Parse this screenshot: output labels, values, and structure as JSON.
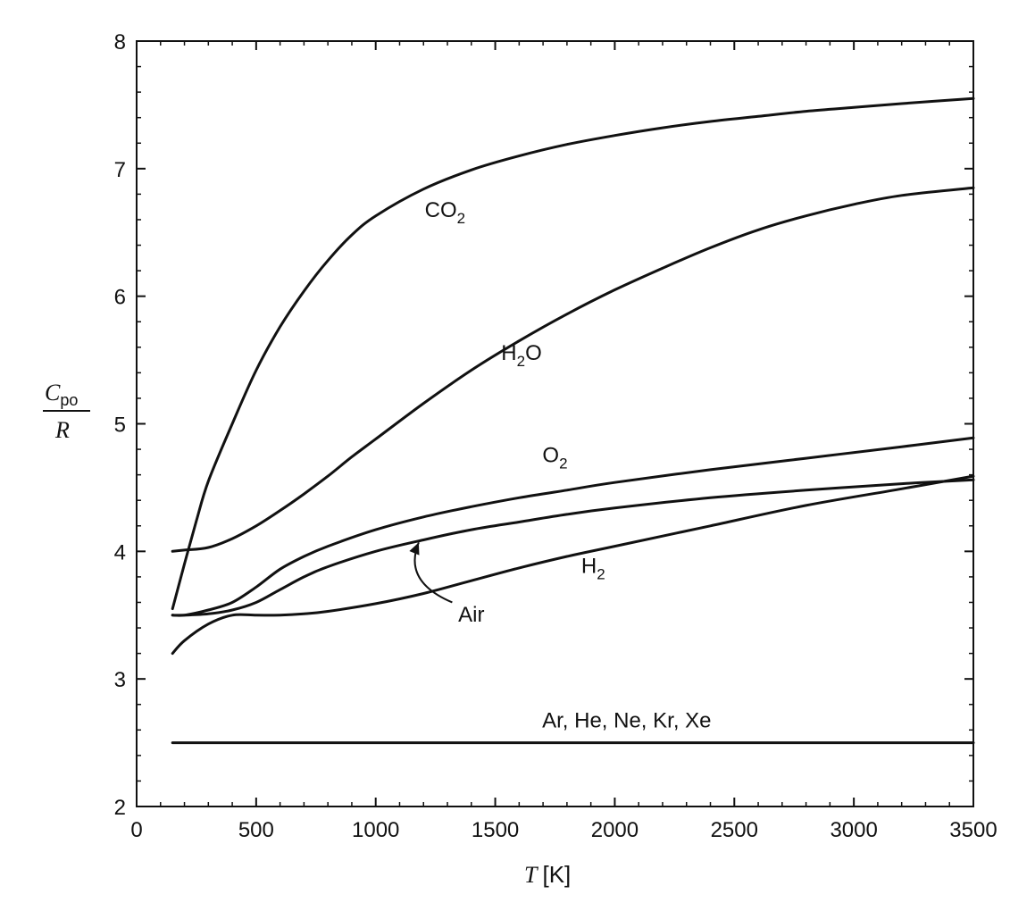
{
  "chart_data": {
    "type": "line",
    "xlabel": {
      "symbol": "T",
      "unit": "[K]"
    },
    "ylabel": {
      "numerator": "C",
      "numerator_sub": "po",
      "denominator": "R"
    },
    "xlim": [
      0,
      3500
    ],
    "ylim": [
      2,
      8
    ],
    "x_ticks": [
      0,
      500,
      1000,
      1500,
      2000,
      2500,
      3000,
      3500
    ],
    "y_ticks": [
      2,
      3,
      4,
      5,
      6,
      7,
      8
    ],
    "grid": false,
    "line_color": "#111111",
    "series": [
      {
        "name": "CO2",
        "label_main": "CO",
        "label_sub": "2",
        "label_anchor": [
          1290,
          6.62
        ],
        "x": [
          150,
          200,
          250,
          300,
          400,
          500,
          600,
          700,
          800,
          900,
          1000,
          1200,
          1400,
          1600,
          1800,
          2000,
          2200,
          2400,
          2600,
          2800,
          3000,
          3200,
          3500
        ],
        "y": [
          3.55,
          3.9,
          4.24,
          4.55,
          5.0,
          5.42,
          5.76,
          6.04,
          6.28,
          6.48,
          6.63,
          6.84,
          6.99,
          7.1,
          7.19,
          7.26,
          7.32,
          7.37,
          7.41,
          7.45,
          7.48,
          7.51,
          7.55
        ]
      },
      {
        "name": "H2O",
        "label_main": "H",
        "label_sub": "2",
        "label_tail": "O",
        "label_anchor": [
          1610,
          5.5
        ],
        "x": [
          150,
          200,
          300,
          400,
          500,
          600,
          700,
          800,
          900,
          1000,
          1200,
          1400,
          1600,
          1800,
          2000,
          2200,
          2400,
          2600,
          2800,
          3000,
          3200,
          3500
        ],
        "y": [
          4.0,
          4.01,
          4.03,
          4.1,
          4.2,
          4.32,
          4.45,
          4.59,
          4.74,
          4.88,
          5.16,
          5.42,
          5.65,
          5.86,
          6.05,
          6.22,
          6.38,
          6.52,
          6.63,
          6.72,
          6.79,
          6.85
        ]
      },
      {
        "name": "O2",
        "label_main": "O",
        "label_sub": "2",
        "label_anchor": [
          1750,
          4.7
        ],
        "x": [
          150,
          200,
          300,
          400,
          500,
          600,
          700,
          800,
          1000,
          1200,
          1400,
          1600,
          1800,
          2000,
          2400,
          2800,
          3200,
          3500
        ],
        "y": [
          3.5,
          3.5,
          3.54,
          3.6,
          3.72,
          3.86,
          3.96,
          4.04,
          4.17,
          4.27,
          4.35,
          4.42,
          4.48,
          4.54,
          4.64,
          4.73,
          4.82,
          4.89
        ]
      },
      {
        "name": "Air",
        "label_main": "Air",
        "label_anchor": [
          1400,
          3.45
        ],
        "arrow_from": [
          1320,
          3.6
        ],
        "arrow_to": [
          1180,
          4.07
        ],
        "x": [
          150,
          200,
          300,
          400,
          500,
          600,
          700,
          800,
          1000,
          1200,
          1400,
          1600,
          1800,
          2000,
          2400,
          2800,
          3200,
          3500
        ],
        "y": [
          3.5,
          3.5,
          3.51,
          3.54,
          3.6,
          3.7,
          3.8,
          3.88,
          4.0,
          4.09,
          4.17,
          4.23,
          4.29,
          4.34,
          4.42,
          4.48,
          4.53,
          4.56
        ]
      },
      {
        "name": "H2",
        "label_main": "H",
        "label_sub": "2",
        "label_anchor": [
          1910,
          3.83
        ],
        "x": [
          150,
          200,
          300,
          400,
          500,
          600,
          700,
          800,
          1000,
          1200,
          1400,
          1600,
          1800,
          2000,
          2400,
          2800,
          3200,
          3500
        ],
        "y": [
          3.2,
          3.3,
          3.43,
          3.5,
          3.5,
          3.5,
          3.51,
          3.53,
          3.59,
          3.67,
          3.77,
          3.87,
          3.96,
          4.04,
          4.2,
          4.36,
          4.49,
          4.59
        ]
      },
      {
        "name": "Ar, He, Ne, Kr, Xe",
        "label_main": "Ar, He, Ne, Kr, Xe",
        "label_anchor": [
          2050,
          2.62
        ],
        "x": [
          150,
          3500
        ],
        "y": [
          2.5,
          2.5
        ]
      }
    ]
  }
}
